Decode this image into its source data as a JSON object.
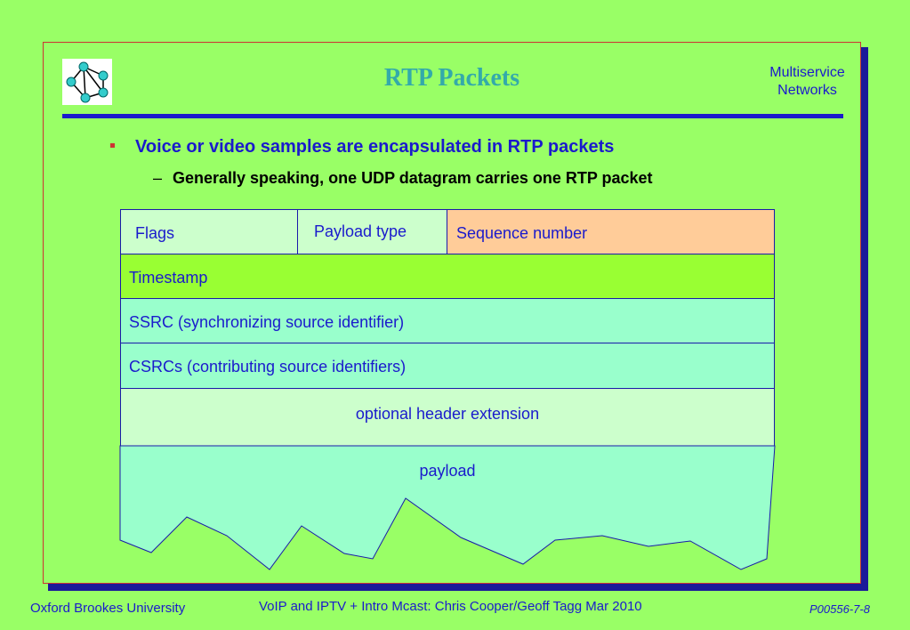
{
  "slide": {
    "title": "RTP Packets",
    "corner_label_line1": "Multiservice",
    "corner_label_line2": "Networks"
  },
  "bullets": {
    "level1": "Voice or video samples are encapsulated in RTP packets",
    "level2_dash": "–",
    "level2": "Generally speaking, one UDP datagram carries one RTP packet"
  },
  "packet": {
    "flags": "Flags",
    "payload_type": "Payload type",
    "sequence_number": "Sequence number",
    "timestamp": "Timestamp",
    "ssrc": "SSRC (synchronizing source identifier)",
    "csrcs": "CSRCs (contributing source identifiers)",
    "header_extension": "optional header extension",
    "payload": "payload"
  },
  "footer": {
    "left": "Oxford Brookes University",
    "center": "VoIP and IPTV + Intro Mcast:  Chris Cooper/Geoff Tagg  Mar 2010",
    "right": "P00556-7-8"
  },
  "colors": {
    "background": "#99ff66",
    "title": "#33aaaa",
    "text_blue": "#1a1acc",
    "frame_shadow": "#1a1a99",
    "cell_light_green": "#ccffcc",
    "cell_orange": "#ffcc99",
    "cell_lime": "#99ff33",
    "cell_mint": "#99ffcc"
  }
}
